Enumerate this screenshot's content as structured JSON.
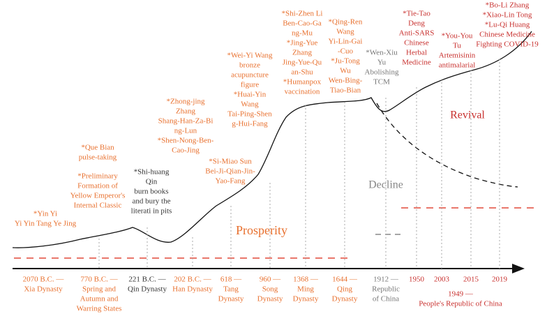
{
  "periods": [
    {
      "lines": [
        "2070 B.C. —",
        "Xia Dynasty"
      ]
    },
    {
      "lines": [
        "770 B.C. —",
        "Spring and",
        "Autumn and",
        "Warring States"
      ]
    },
    {
      "lines": [
        "221 B.C. —",
        "Qin Dynasty"
      ]
    },
    {
      "lines": [
        "202 B.C. —",
        "Han Dynasty"
      ]
    },
    {
      "lines": [
        "618 —",
        "Tang",
        "Dynasty"
      ]
    },
    {
      "lines": [
        "960 —",
        "Song",
        "Dynasty"
      ]
    },
    {
      "lines": [
        "1368 —",
        "Ming",
        "Dynasty"
      ]
    },
    {
      "lines": [
        "1644 —",
        "Qing",
        "Dynasty"
      ]
    },
    {
      "lines": [
        "1912 —",
        "Republic",
        "of China"
      ]
    },
    {
      "lines": [
        "1950"
      ]
    },
    {
      "lines": [
        "2003"
      ]
    },
    {
      "lines": [
        "2015"
      ]
    },
    {
      "lines": [
        "2019"
      ]
    }
  ],
  "prc": {
    "lines": [
      "1949 —",
      "People's Republic of China"
    ]
  },
  "events": [
    {
      "lines": [
        "*Yin Yi",
        "Yi Yin Tang Ye Jing"
      ]
    },
    {
      "lines": [
        "*Que Bian",
        "pulse-taking"
      ]
    },
    {
      "lines": [
        "*Preliminary",
        "Formation of",
        "Yellow Emperor's",
        "Internal Classic"
      ]
    },
    {
      "lines": [
        "*Shi-huang",
        "Qin",
        "burn books",
        "and bury the",
        "literati in pits"
      ]
    },
    {
      "lines": [
        "*Zhong-jing",
        "Zhang",
        "Shang-Han-Za-Bi",
        "ng-Lun",
        "*Shen-Nong-Ben-",
        "Cao-Jing"
      ]
    },
    {
      "lines": [
        "*Si-Miao Sun",
        "Bei-Ji-Qian-Jin-",
        "Yao-Fang"
      ]
    },
    {
      "lines": [
        "*Wei-Yi Wang",
        "bronze",
        "acupuncture",
        "figure",
        "*Huai-Yin",
        "Wang",
        "Tai-Ping-Shen",
        "g-Hui-Fang"
      ]
    },
    {
      "lines": [
        "*Shi-Zhen Li",
        "Ben-Cao-Ga",
        "ng-Mu",
        "*Jing-Yue",
        "Zhang",
        "Jing-Yue-Qu",
        "an-Shu",
        "*Humanpox",
        "vaccination"
      ]
    },
    {
      "lines": [
        "*Qing-Ren",
        "Wang",
        "Yi-Lin-Gai",
        "-Cuo",
        "*Ju-Tong",
        "Wu",
        "Wen-Bing-",
        "Tiao-Bian"
      ]
    },
    {
      "lines": [
        "*Wen-Xiu",
        "Yu",
        "Abolishing",
        "TCM"
      ]
    },
    {
      "lines": [
        "*Tie-Tao",
        "Deng",
        "Anti-SARS",
        "Chinese",
        "Herbal",
        "Medicine"
      ]
    },
    {
      "lines": [
        "*You-You",
        "Tu",
        "Artemisinin",
        "antimalarial"
      ]
    },
    {
      "lines": [
        "*Bo-Li Zhang",
        "*Xiao-Lin Tong",
        "*Lu-Qi Huang",
        "Chinese Medicine",
        "Fighting COVID-19"
      ]
    }
  ],
  "phases": {
    "prosperity": "Prosperity",
    "decline": "Decline",
    "revival": "Revival"
  }
}
